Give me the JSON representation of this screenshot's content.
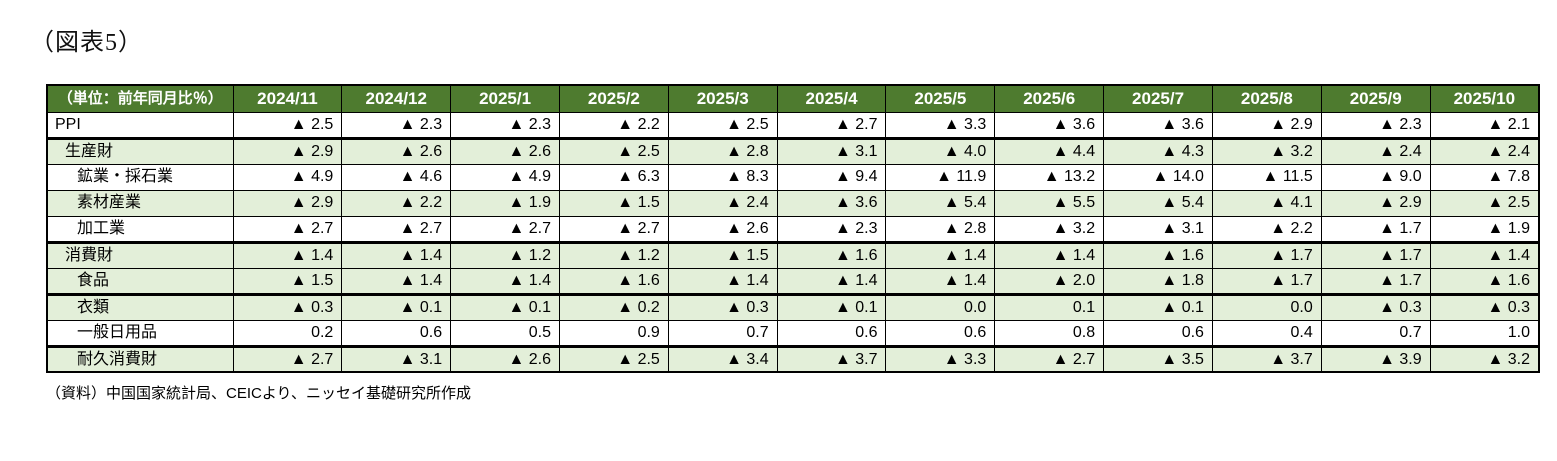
{
  "figure_label": "（図表5）",
  "source_note": "（資料）中国国家統計局、CEICより、ニッセイ基礎研究所作成",
  "theme": {
    "header_bg": "#4e7b2f",
    "header_text": "#ffffff",
    "row_alt_bg": "#e3efd9",
    "border_color": "#000000"
  },
  "chart_data": {
    "type": "table",
    "title": "（図表5）",
    "unit_label": "（単位：前年同月比％）",
    "negative_marker": "▲",
    "columns": [
      "2024/11",
      "2024/12",
      "2025/1",
      "2025/2",
      "2025/3",
      "2025/4",
      "2025/5",
      "2025/6",
      "2025/7",
      "2025/8",
      "2025/9",
      "2025/10"
    ],
    "rows": [
      {
        "label": "PPI",
        "indent": 0,
        "shaded": false,
        "group_start": false,
        "values": [
          "▲ 2.5",
          "▲ 2.3",
          "▲ 2.3",
          "▲ 2.2",
          "▲ 2.5",
          "▲ 2.7",
          "▲ 3.3",
          "▲ 3.6",
          "▲ 3.6",
          "▲ 2.9",
          "▲ 2.3",
          "▲ 2.1"
        ]
      },
      {
        "label": "生産財",
        "indent": 1,
        "shaded": true,
        "group_start": true,
        "values": [
          "▲ 2.9",
          "▲ 2.6",
          "▲ 2.6",
          "▲ 2.5",
          "▲ 2.8",
          "▲ 3.1",
          "▲ 4.0",
          "▲ 4.4",
          "▲ 4.3",
          "▲ 3.2",
          "▲ 2.4",
          "▲ 2.4"
        ]
      },
      {
        "label": "鉱業・採石業",
        "indent": 2,
        "shaded": false,
        "group_start": false,
        "values": [
          "▲ 4.9",
          "▲ 4.6",
          "▲ 4.9",
          "▲ 6.3",
          "▲ 8.3",
          "▲ 9.4",
          "▲ 11.9",
          "▲ 13.2",
          "▲ 14.0",
          "▲ 11.5",
          "▲ 9.0",
          "▲ 7.8"
        ]
      },
      {
        "label": "素材産業",
        "indent": 2,
        "shaded": true,
        "group_start": false,
        "values": [
          "▲ 2.9",
          "▲ 2.2",
          "▲ 1.9",
          "▲ 1.5",
          "▲ 2.4",
          "▲ 3.6",
          "▲ 5.4",
          "▲ 5.5",
          "▲ 5.4",
          "▲ 4.1",
          "▲ 2.9",
          "▲ 2.5"
        ]
      },
      {
        "label": "加工業",
        "indent": 2,
        "shaded": false,
        "group_start": false,
        "values": [
          "▲ 2.7",
          "▲ 2.7",
          "▲ 2.7",
          "▲ 2.7",
          "▲ 2.6",
          "▲ 2.3",
          "▲ 2.8",
          "▲ 3.2",
          "▲ 3.1",
          "▲ 2.2",
          "▲ 1.7",
          "▲ 1.9"
        ]
      },
      {
        "label": "消費財",
        "indent": 1,
        "shaded": true,
        "group_start": true,
        "values": [
          "▲ 1.4",
          "▲ 1.4",
          "▲ 1.2",
          "▲ 1.2",
          "▲ 1.5",
          "▲ 1.6",
          "▲ 1.4",
          "▲ 1.4",
          "▲ 1.6",
          "▲ 1.7",
          "▲ 1.7",
          "▲ 1.4"
        ]
      },
      {
        "label": "食品",
        "indent": 2,
        "shaded": true,
        "group_start": false,
        "values": [
          "▲ 1.5",
          "▲ 1.4",
          "▲ 1.4",
          "▲ 1.6",
          "▲ 1.4",
          "▲ 1.4",
          "▲ 1.4",
          "▲ 2.0",
          "▲ 1.8",
          "▲ 1.7",
          "▲ 1.7",
          "▲ 1.6"
        ]
      },
      {
        "label": "衣類",
        "indent": 2,
        "shaded": true,
        "group_start": true,
        "values": [
          "▲ 0.3",
          "▲ 0.1",
          "▲ 0.1",
          "▲ 0.2",
          "▲ 0.3",
          "▲ 0.1",
          "0.0",
          "0.1",
          "▲ 0.1",
          "0.0",
          "▲ 0.3",
          "▲ 0.3"
        ]
      },
      {
        "label": "一般日用品",
        "indent": 2,
        "shaded": false,
        "group_start": false,
        "values": [
          "0.2",
          "0.6",
          "0.5",
          "0.9",
          "0.7",
          "0.6",
          "0.6",
          "0.8",
          "0.6",
          "0.4",
          "0.7",
          "1.0"
        ]
      },
      {
        "label": "耐久消費財",
        "indent": 2,
        "shaded": true,
        "group_start": true,
        "values": [
          "▲ 2.7",
          "▲ 3.1",
          "▲ 2.6",
          "▲ 2.5",
          "▲ 3.4",
          "▲ 3.7",
          "▲ 3.3",
          "▲ 2.7",
          "▲ 3.5",
          "▲ 3.7",
          "▲ 3.9",
          "▲ 3.2"
        ]
      }
    ]
  }
}
